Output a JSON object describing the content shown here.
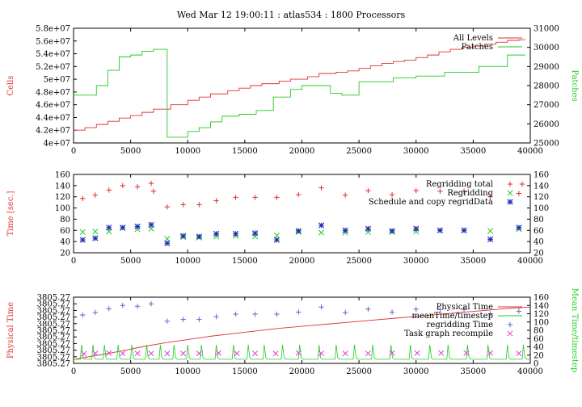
{
  "title": "Wed Mar 12 19:00:11 : atlas534 : 1800 Processors",
  "colors": {
    "red": "#e03030",
    "green": "#22cc22",
    "blue": "#2233bb",
    "purple": "#6666cc",
    "magenta": "#dd44dd"
  },
  "chart_data": [
    {
      "type": "line",
      "xlim": [
        0,
        40000
      ],
      "xticks": [
        "0",
        "5000",
        "10000",
        "15000",
        "20000",
        "25000",
        "30000",
        "35000",
        "40000"
      ],
      "ylabel": "Cells",
      "ylim": [
        40000000,
        58000000
      ],
      "yticks": [
        "4e+07",
        "4.2e+07",
        "4.4e+07",
        "4.6e+07",
        "4.8e+07",
        "5e+07",
        "5.2e+07",
        "5.4e+07",
        "5.6e+07",
        "5.8e+07"
      ],
      "y2label": "Patches",
      "y2lim": [
        25000,
        31000
      ],
      "y2ticks": [
        "25000",
        "26000",
        "27000",
        "28000",
        "29000",
        "30000",
        "31000"
      ],
      "series": [
        {
          "name": "All Levels",
          "axis": "left",
          "color": "#e03030",
          "step": true,
          "x": [
            0,
            1000,
            2000,
            3000,
            4000,
            5000,
            6000,
            7000,
            8500,
            10000,
            11000,
            12000,
            13500,
            14500,
            15500,
            16500,
            18000,
            19000,
            20500,
            21500,
            23000,
            24000,
            25000,
            26000,
            27000,
            28000,
            29000,
            30000,
            31000,
            32000,
            33000,
            34000,
            35000,
            36000,
            37000,
            38000,
            39000
          ],
          "y": [
            42000000,
            42400000,
            42900000,
            43400000,
            43900000,
            44300000,
            44800000,
            45300000,
            46000000,
            46700000,
            47200000,
            47700000,
            48200000,
            48600000,
            49000000,
            49300000,
            49700000,
            50000000,
            50400000,
            50900000,
            51100000,
            51300000,
            51700000,
            52100000,
            52500000,
            52800000,
            53000000,
            53400000,
            53800000,
            54300000,
            54700000,
            55000000,
            55200000,
            55500000,
            55800000,
            56100000,
            56200000
          ]
        },
        {
          "name": "Patches",
          "axis": "right",
          "color": "#22cc22",
          "step": true,
          "x": [
            0,
            1000,
            2000,
            3000,
            4000,
            5000,
            6000,
            7000,
            8200,
            9000,
            10000,
            11000,
            12000,
            13000,
            14500,
            16000,
            17500,
            19000,
            20000,
            22500,
            23500,
            25000,
            27000,
            28000,
            30000,
            31000,
            32500,
            34000,
            35500,
            38000,
            39000
          ],
          "y": [
            27500,
            27500,
            28000,
            28800,
            29500,
            29600,
            29800,
            29900,
            25300,
            25300,
            25600,
            25800,
            26100,
            26400,
            26500,
            26700,
            27400,
            27800,
            28000,
            27600,
            27500,
            28200,
            28200,
            28400,
            28500,
            28500,
            28700,
            28700,
            29000,
            29600,
            29600
          ]
        }
      ]
    },
    {
      "type": "scatter",
      "xlim": [
        0,
        40000
      ],
      "xticks": [
        "0",
        "5000",
        "10000",
        "15000",
        "20000",
        "25000",
        "30000",
        "35000",
        "40000"
      ],
      "ylabel": "Time [sec.]",
      "ylim": [
        20,
        160
      ],
      "yticks": [
        "20",
        "40",
        "60",
        "80",
        "100",
        "120",
        "140",
        "160"
      ],
      "y2lim": [
        20,
        160
      ],
      "y2ticks": [
        "20",
        "40",
        "60",
        "80",
        "100",
        "120",
        "140",
        "160"
      ],
      "series": [
        {
          "name": "Regridding total",
          "color": "#e03030",
          "marker": "+",
          "x": [
            800,
            1900,
            3100,
            4300,
            5600,
            6800,
            7000,
            8200,
            9600,
            11000,
            12500,
            14200,
            15900,
            17800,
            19700,
            21700,
            23800,
            25800,
            27900,
            30000,
            32100,
            34200,
            36500,
            39000
          ],
          "y": [
            117,
            123,
            132,
            140,
            138,
            144,
            130,
            102,
            106,
            106,
            113,
            119,
            119,
            119,
            124,
            136,
            123,
            131,
            124,
            131,
            130,
            130,
            120,
            126
          ]
        },
        {
          "name": "Regridding",
          "color": "#22cc22",
          "marker": "x",
          "x": [
            800,
            1900,
            3100,
            4300,
            5600,
            6800,
            8200,
            9600,
            11000,
            12500,
            14200,
            15900,
            17800,
            19700,
            21700,
            23800,
            25800,
            27900,
            30000,
            32100,
            34200,
            36500,
            39000
          ],
          "y": [
            57,
            58,
            58,
            64,
            62,
            63,
            45,
            48,
            47,
            49,
            50,
            49,
            51,
            57,
            56,
            56,
            57,
            57,
            58,
            60,
            60,
            59,
            62
          ]
        },
        {
          "name": "Schedule and copy regridData",
          "color": "#2233bb",
          "marker": "*",
          "x": [
            800,
            1900,
            3100,
            4300,
            5600,
            6800,
            8200,
            9600,
            11000,
            12500,
            14200,
            15900,
            17800,
            19700,
            21700,
            23800,
            25800,
            27900,
            30000,
            32100,
            34200,
            36500,
            39000
          ],
          "y": [
            43,
            46,
            65,
            65,
            67,
            70,
            37,
            50,
            49,
            54,
            54,
            55,
            43,
            59,
            69,
            60,
            63,
            59,
            63,
            60,
            60,
            44,
            65
          ]
        }
      ]
    },
    {
      "type": "line",
      "xlim": [
        0,
        40000
      ],
      "xticks": [
        "0",
        "5000",
        "10000",
        "15000",
        "20000",
        "25000",
        "30000",
        "35000",
        "40000"
      ],
      "ylabel": "Physical Time",
      "ylim": [
        0,
        10
      ],
      "yticks": [
        "3805.27",
        "3805.27",
        "3805.27",
        "3805.27",
        "3805.27",
        "3805.27",
        "3805.27",
        "3805.27",
        "3805.27",
        "3805.27",
        "3805.27"
      ],
      "y2label": "Mean Time/timestep",
      "y2lim": [
        0,
        160
      ],
      "y2ticks": [
        "0",
        "20",
        "40",
        "60",
        "80",
        "100",
        "120",
        "140",
        "160"
      ],
      "series": [
        {
          "name": "Physical Time",
          "axis": "left",
          "color": "#e03030",
          "x": [
            0,
            2000,
            4000,
            6000,
            8000,
            10000,
            12000,
            14000,
            16000,
            18000,
            20000,
            22000,
            24000,
            26000,
            28000,
            30000,
            32000,
            34000,
            36000,
            38000,
            40000
          ],
          "y": [
            0.6,
            1.2,
            1.8,
            2.5,
            3.1,
            3.6,
            4.1,
            4.5,
            4.9,
            5.3,
            5.6,
            5.9,
            6.2,
            6.5,
            6.8,
            7.1,
            7.4,
            7.7,
            8.0,
            8.3,
            8.5
          ]
        },
        {
          "name": "meanTime/timestep",
          "axis": "right",
          "color": "#22cc22",
          "baseline": 10,
          "spike_peak": 45,
          "spikes_x": [
            700,
            1700,
            2700,
            3900,
            5100,
            6400,
            7600,
            8800,
            10000,
            11200,
            12500,
            14000,
            15300,
            16700,
            18300,
            19800,
            21500,
            23000,
            24600,
            26200,
            27800,
            29500,
            31200,
            32800,
            34500,
            36300,
            38000,
            39400
          ]
        },
        {
          "name": "regridding Time",
          "axis": "right",
          "color": "#6666cc",
          "marker": "+",
          "x": [
            800,
            1900,
            3100,
            4300,
            5600,
            6800,
            8200,
            9600,
            11000,
            12500,
            14200,
            15900,
            17800,
            19700,
            21700,
            23800,
            25800,
            27900,
            30000,
            32100,
            34200,
            36500,
            39000
          ],
          "y": [
            117,
            123,
            132,
            140,
            138,
            144,
            102,
            106,
            106,
            113,
            119,
            119,
            119,
            124,
            136,
            123,
            131,
            124,
            131,
            130,
            130,
            120,
            126
          ]
        },
        {
          "name": "Task graph recompile",
          "axis": "right",
          "color": "#dd44dd",
          "marker": "x",
          "x": [
            900,
            1900,
            3100,
            4300,
            5600,
            6800,
            8200,
            9600,
            11000,
            12700,
            14300,
            15900,
            17700,
            19700,
            21700,
            23800,
            25800,
            27900,
            30100,
            32200,
            34400,
            36500,
            39000
          ],
          "y": [
            23,
            24,
            25,
            24,
            24,
            24,
            24,
            24,
            24,
            25,
            24,
            24,
            24,
            25,
            24,
            24,
            24,
            25,
            25,
            25,
            25,
            25,
            24
          ]
        }
      ]
    }
  ]
}
